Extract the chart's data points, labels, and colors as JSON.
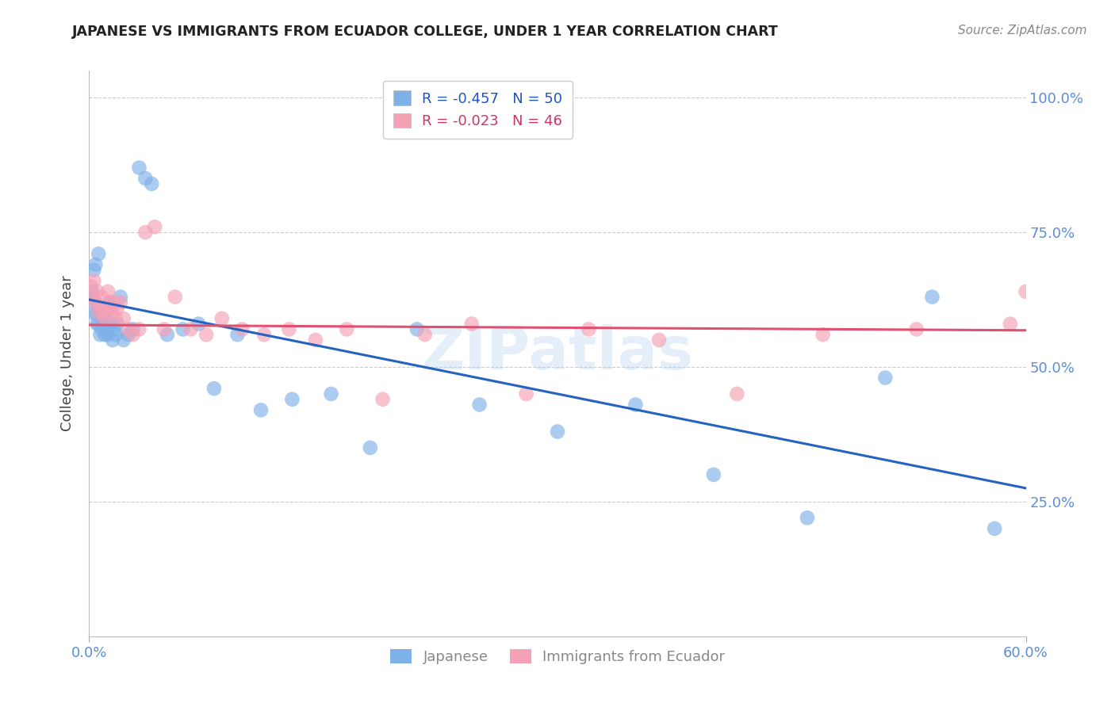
{
  "title": "JAPANESE VS IMMIGRANTS FROM ECUADOR COLLEGE, UNDER 1 YEAR CORRELATION CHART",
  "source": "Source: ZipAtlas.com",
  "ylabel": "College, Under 1 year",
  "ytick_labels": [
    "25.0%",
    "50.0%",
    "75.0%",
    "100.0%"
  ],
  "ytick_values": [
    0.25,
    0.5,
    0.75,
    1.0
  ],
  "xmin": 0.0,
  "xmax": 0.6,
  "ymin": 0.0,
  "ymax": 1.05,
  "legend_blue_r": "-0.457",
  "legend_blue_n": "50",
  "legend_pink_r": "-0.023",
  "legend_pink_n": "46",
  "blue_color": "#7EB1E8",
  "pink_color": "#F4A0B5",
  "blue_line_color": "#2563C0",
  "pink_line_color": "#E05070",
  "watermark": "ZIPatlas",
  "jap_x": [
    0.001,
    0.002,
    0.003,
    0.003,
    0.004,
    0.004,
    0.005,
    0.005,
    0.006,
    0.006,
    0.007,
    0.007,
    0.008,
    0.009,
    0.009,
    0.01,
    0.01,
    0.011,
    0.012,
    0.013,
    0.014,
    0.015,
    0.016,
    0.017,
    0.018,
    0.02,
    0.022,
    0.025,
    0.028,
    0.032,
    0.036,
    0.04,
    0.05,
    0.06,
    0.07,
    0.08,
    0.095,
    0.11,
    0.13,
    0.155,
    0.18,
    0.21,
    0.25,
    0.3,
    0.35,
    0.4,
    0.46,
    0.51,
    0.54,
    0.58
  ],
  "jap_y": [
    0.63,
    0.64,
    0.68,
    0.6,
    0.69,
    0.62,
    0.6,
    0.58,
    0.71,
    0.58,
    0.6,
    0.56,
    0.57,
    0.6,
    0.58,
    0.56,
    0.59,
    0.57,
    0.56,
    0.62,
    0.58,
    0.55,
    0.57,
    0.56,
    0.58,
    0.63,
    0.55,
    0.56,
    0.57,
    0.87,
    0.85,
    0.84,
    0.56,
    0.57,
    0.58,
    0.46,
    0.56,
    0.42,
    0.44,
    0.45,
    0.35,
    0.57,
    0.43,
    0.38,
    0.43,
    0.3,
    0.22,
    0.48,
    0.63,
    0.2
  ],
  "ecu_x": [
    0.001,
    0.002,
    0.003,
    0.004,
    0.005,
    0.006,
    0.007,
    0.008,
    0.009,
    0.01,
    0.011,
    0.012,
    0.013,
    0.014,
    0.015,
    0.016,
    0.017,
    0.018,
    0.02,
    0.022,
    0.025,
    0.028,
    0.032,
    0.036,
    0.042,
    0.048,
    0.055,
    0.065,
    0.075,
    0.085,
    0.098,
    0.112,
    0.128,
    0.145,
    0.165,
    0.188,
    0.215,
    0.245,
    0.28,
    0.32,
    0.365,
    0.415,
    0.47,
    0.53,
    0.59,
    0.6
  ],
  "ecu_y": [
    0.65,
    0.63,
    0.66,
    0.62,
    0.64,
    0.6,
    0.61,
    0.63,
    0.6,
    0.59,
    0.61,
    0.64,
    0.62,
    0.61,
    0.6,
    0.62,
    0.59,
    0.61,
    0.62,
    0.59,
    0.57,
    0.56,
    0.57,
    0.75,
    0.76,
    0.57,
    0.63,
    0.57,
    0.56,
    0.59,
    0.57,
    0.56,
    0.57,
    0.55,
    0.57,
    0.44,
    0.56,
    0.58,
    0.45,
    0.57,
    0.55,
    0.45,
    0.56,
    0.57,
    0.58,
    0.64
  ],
  "blue_line_x": [
    0.0,
    0.6
  ],
  "blue_line_y": [
    0.625,
    0.275
  ],
  "pink_line_x": [
    0.0,
    0.6
  ],
  "pink_line_y": [
    0.578,
    0.568
  ]
}
